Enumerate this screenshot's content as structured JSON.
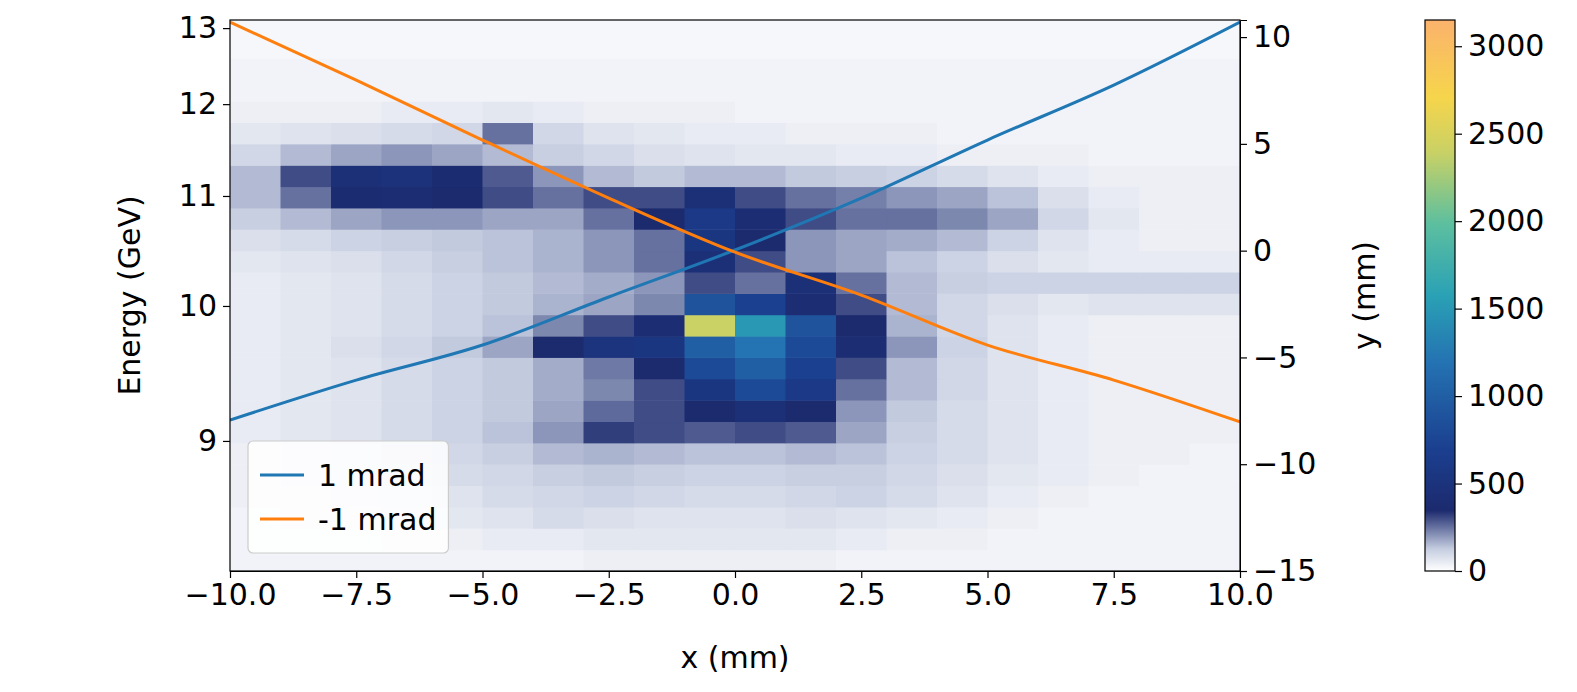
{
  "chart_data": {
    "type": "heatmap",
    "x_label": "x (mm)",
    "y_label": "y (mm)",
    "xlim": [
      -10,
      10
    ],
    "xticks": [
      {
        "value": -10,
        "label": "−10.0"
      },
      {
        "value": -7.5,
        "label": "−7.5"
      },
      {
        "value": -5,
        "label": "−5.0"
      },
      {
        "value": -2.5,
        "label": "−2.5"
      },
      {
        "value": 0,
        "label": "0.0"
      },
      {
        "value": 2.5,
        "label": "2.5"
      },
      {
        "value": 5,
        "label": "5.0"
      },
      {
        "value": 7.5,
        "label": "7.5"
      },
      {
        "value": 10,
        "label": "10.0"
      }
    ],
    "ylim": [
      -15,
      10.8
    ],
    "yticks": [
      {
        "value": -15,
        "label": "−15"
      },
      {
        "value": -10,
        "label": "−10"
      },
      {
        "value": -5,
        "label": "−5"
      },
      0,
      5,
      10
    ],
    "energy_axis": {
      "label": "Energy (GeV)",
      "ticks": [
        13,
        12,
        11,
        10,
        9
      ],
      "y_at_ticks": [
        10.42,
        6.86,
        2.56,
        -2.59,
        -8.91
      ]
    },
    "heatmap": {
      "x_edges": [
        -10,
        -9,
        -8,
        -7,
        -6,
        -5,
        -4,
        -3,
        -2,
        -1,
        0,
        1,
        2,
        3,
        4,
        5,
        6,
        7,
        8,
        9,
        10
      ],
      "y_edges": [
        -15,
        -14,
        -13,
        -12,
        -11,
        -10,
        -9,
        -8,
        -7,
        -6,
        -5,
        -4,
        -3,
        -2,
        -1,
        0,
        1,
        2,
        3,
        4,
        5,
        6,
        7,
        8,
        9,
        10,
        11
      ],
      "z": [
        [
          30,
          30,
          30,
          30,
          30,
          30,
          30,
          40,
          40,
          40,
          40,
          40,
          30,
          30,
          30,
          30,
          30,
          30,
          30,
          30
        ],
        [
          30,
          30,
          30,
          40,
          40,
          50,
          50,
          60,
          60,
          60,
          60,
          60,
          50,
          40,
          40,
          30,
          30,
          30,
          30,
          30
        ],
        [
          30,
          40,
          40,
          50,
          60,
          70,
          90,
          80,
          70,
          70,
          70,
          80,
          70,
          60,
          50,
          40,
          30,
          30,
          30,
          30
        ],
        [
          40,
          40,
          50,
          60,
          70,
          90,
          100,
          110,
          100,
          90,
          90,
          100,
          110,
          90,
          70,
          50,
          40,
          30,
          30,
          30
        ],
        [
          40,
          50,
          60,
          70,
          90,
          100,
          120,
          130,
          120,
          110,
          110,
          120,
          120,
          100,
          80,
          60,
          50,
          40,
          30,
          30
        ],
        [
          40,
          50,
          60,
          80,
          100,
          120,
          150,
          160,
          150,
          140,
          140,
          150,
          140,
          110,
          90,
          70,
          50,
          40,
          40,
          30
        ],
        [
          50,
          60,
          70,
          90,
          110,
          140,
          200,
          320,
          300,
          280,
          300,
          280,
          180,
          120,
          90,
          70,
          50,
          40,
          40,
          40
        ],
        [
          50,
          60,
          70,
          90,
          110,
          130,
          180,
          260,
          300,
          350,
          450,
          350,
          200,
          130,
          90,
          70,
          50,
          40,
          40,
          40
        ],
        [
          50,
          60,
          70,
          90,
          110,
          130,
          170,
          220,
          300,
          550,
          800,
          600,
          250,
          150,
          100,
          70,
          50,
          40,
          40,
          40
        ],
        [
          50,
          60,
          70,
          90,
          110,
          130,
          170,
          240,
          350,
          800,
          1000,
          700,
          300,
          150,
          100,
          70,
          50,
          40,
          40,
          40
        ],
        [
          50,
          60,
          80,
          100,
          130,
          180,
          350,
          500,
          550,
          1000,
          1200,
          800,
          400,
          200,
          110,
          70,
          50,
          40,
          40,
          40
        ],
        [
          50,
          60,
          70,
          90,
          110,
          140,
          220,
          300,
          400,
          2400,
          1500,
          900,
          350,
          160,
          100,
          70,
          50,
          40,
          40,
          40
        ],
        [
          50,
          60,
          70,
          90,
          110,
          130,
          160,
          180,
          220,
          900,
          700,
          400,
          300,
          150,
          100,
          80,
          60,
          70,
          70,
          70
        ],
        [
          50,
          60,
          70,
          90,
          110,
          130,
          150,
          170,
          200,
          300,
          250,
          450,
          250,
          150,
          120,
          110,
          110,
          110,
          110,
          110
        ],
        [
          60,
          70,
          80,
          100,
          120,
          140,
          160,
          200,
          250,
          450,
          300,
          200,
          180,
          140,
          110,
          80,
          60,
          50,
          50,
          50
        ],
        [
          80,
          90,
          110,
          120,
          130,
          140,
          160,
          200,
          250,
          550,
          350,
          200,
          180,
          170,
          150,
          110,
          70,
          50,
          40,
          40
        ],
        [
          120,
          150,
          180,
          200,
          200,
          180,
          180,
          250,
          350,
          600,
          400,
          300,
          250,
          250,
          220,
          180,
          100,
          60,
          40,
          40
        ],
        [
          150,
          250,
          380,
          400,
          350,
          300,
          250,
          300,
          300,
          450,
          300,
          250,
          230,
          200,
          180,
          140,
          80,
          50,
          40,
          40
        ],
        [
          150,
          300,
          450,
          480,
          380,
          280,
          200,
          150,
          130,
          150,
          150,
          130,
          120,
          110,
          90,
          70,
          50,
          40,
          40,
          40
        ],
        [
          100,
          150,
          180,
          200,
          180,
          150,
          120,
          100,
          80,
          70,
          60,
          60,
          50,
          50,
          40,
          40,
          40,
          30,
          30,
          30
        ],
        [
          60,
          70,
          80,
          90,
          100,
          250,
          100,
          70,
          60,
          50,
          50,
          40,
          40,
          40,
          30,
          30,
          30,
          30,
          30,
          30
        ],
        [
          40,
          40,
          40,
          50,
          50,
          60,
          50,
          40,
          40,
          40,
          30,
          30,
          30,
          30,
          30,
          30,
          30,
          30,
          30,
          30
        ],
        [
          30,
          30,
          30,
          30,
          30,
          30,
          30,
          30,
          30,
          30,
          30,
          30,
          30,
          30,
          30,
          30,
          30,
          30,
          30,
          30
        ],
        [
          30,
          30,
          30,
          30,
          30,
          30,
          30,
          30,
          30,
          30,
          30,
          30,
          30,
          30,
          30,
          30,
          30,
          30,
          30,
          30
        ],
        [
          20,
          20,
          20,
          20,
          20,
          20,
          20,
          20,
          20,
          20,
          20,
          20,
          20,
          20,
          20,
          20,
          20,
          20,
          20,
          20
        ],
        [
          20,
          20,
          20,
          20,
          20,
          20,
          20,
          20,
          20,
          20,
          20,
          20,
          20,
          20,
          20,
          20,
          20,
          20,
          20,
          20
        ]
      ]
    },
    "colorbar": {
      "lim": [
        0,
        3150
      ],
      "ticks": [
        0,
        500,
        1000,
        1500,
        2000,
        2500,
        3000
      ]
    },
    "series": [
      {
        "name": "1 mrad",
        "color": "#1f77b4",
        "x": [
          -10,
          -7.5,
          -5,
          -2.5,
          0,
          2.5,
          5,
          7.5,
          10
        ],
        "values": [
          -7.93,
          -6.06,
          -4.42,
          -2.17,
          0.03,
          2.46,
          5.18,
          7.75,
          10.7
        ]
      },
      {
        "name": "-1 mrad",
        "color": "#ff7f0e",
        "x": [
          -10,
          -7.5,
          -5,
          -2.5,
          0,
          2.5,
          5,
          7.5,
          10
        ],
        "values": [
          10.7,
          7.99,
          5.18,
          2.46,
          -0.07,
          -2.08,
          -4.42,
          -6.06,
          -8.02
        ]
      }
    ],
    "legend": "lower left"
  }
}
